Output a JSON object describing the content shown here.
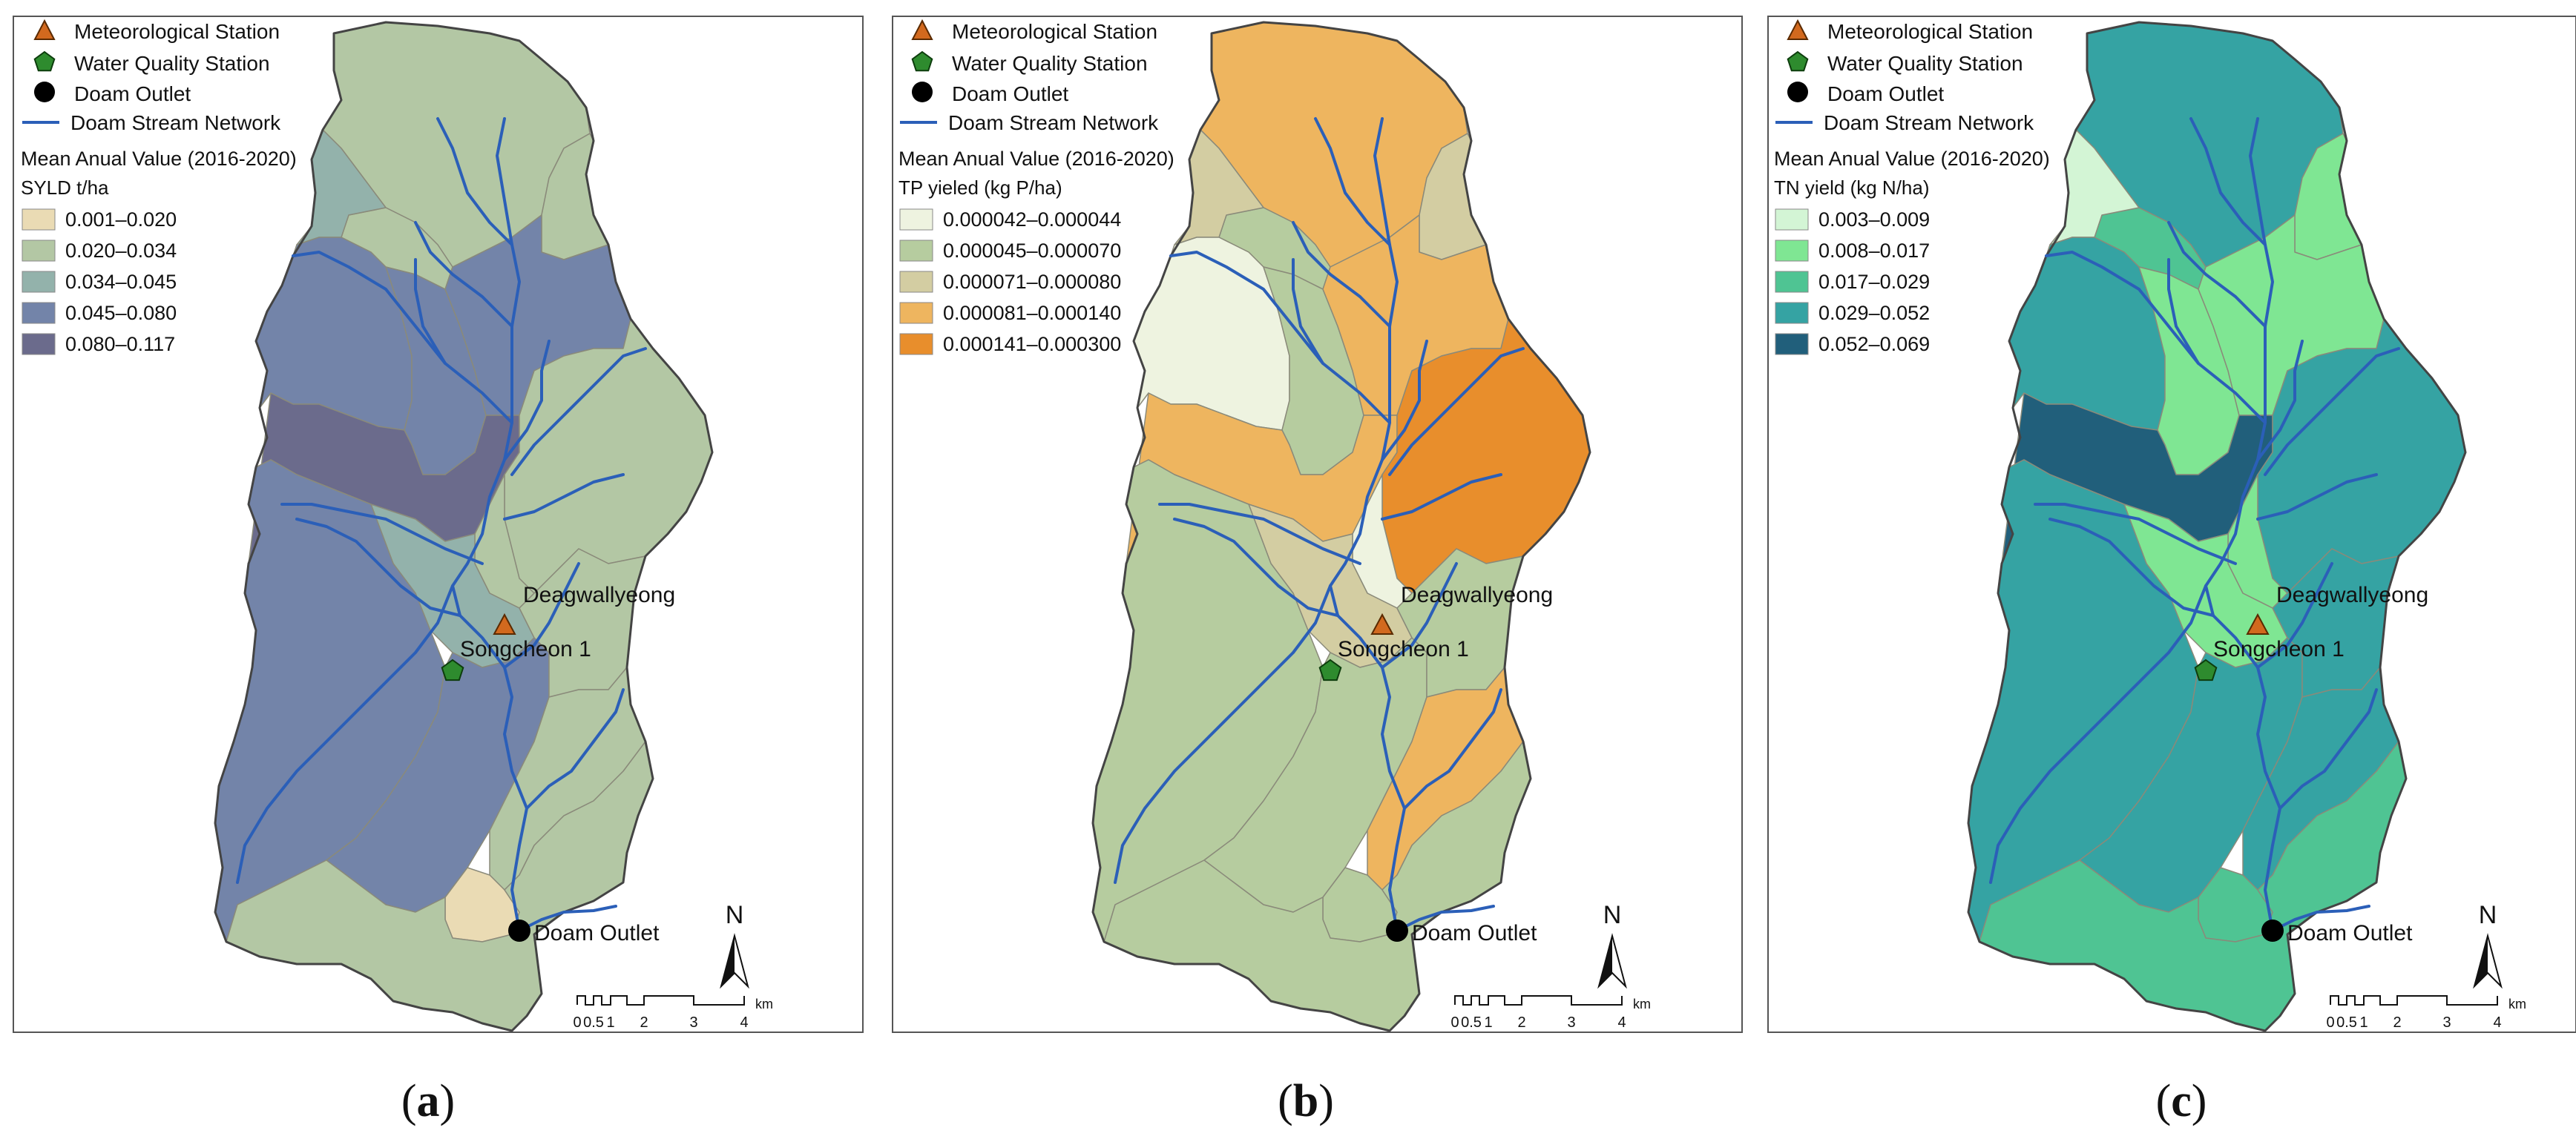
{
  "panels": [
    {
      "id": "a",
      "caption": "a",
      "legend": {
        "symbols": [
          "Meteorological Station",
          "Water Quality Station",
          "Doam Outlet",
          "Doam Stream Network"
        ],
        "title": "Mean Anual Value (2016-2020)",
        "subtitle": "SYLD t/ha",
        "classes": [
          {
            "label": "0.001–0.020",
            "color": "#eadbb4"
          },
          {
            "label": "0.020–0.034",
            "color": "#b3c7a4"
          },
          {
            "label": "0.034–0.045",
            "color": "#93b2ab"
          },
          {
            "label": "0.045–0.080",
            "color": "#7384a9"
          },
          {
            "label": "0.080–0.117",
            "color": "#6b6b8c"
          }
        ]
      },
      "zones": [
        1,
        1,
        2,
        1,
        3,
        3,
        3,
        4,
        1,
        1,
        2,
        3,
        3,
        1,
        1,
        0,
        1
      ],
      "labels": {
        "met": "Deagwallyeong",
        "wq": "Songcheon 1",
        "outlet": "Doam Outlet"
      }
    },
    {
      "id": "b",
      "caption": "b",
      "legend": {
        "symbols": [
          "Meteorological Station",
          "Water Quality Station",
          "Doam Outlet",
          "Doam Stream Network"
        ],
        "title": "Mean Anual Value (2016-2020)",
        "subtitle": "TP yieled (kg P/ha)",
        "classes": [
          {
            "label": "0.000042–0.000044",
            "color": "#eef3e0"
          },
          {
            "label": "0.000045–0.000070",
            "color": "#b6cc9f"
          },
          {
            "label": "0.000071–0.000080",
            "color": "#d3cda2"
          },
          {
            "label": "0.000081–0.000140",
            "color": "#eeb55f"
          },
          {
            "label": "0.000141–0.000300",
            "color": "#e88e2c"
          }
        ]
      },
      "zones": [
        3,
        1,
        2,
        2,
        0,
        1,
        3,
        3,
        4,
        0,
        2,
        1,
        1,
        1,
        3,
        1,
        1
      ],
      "labels": {
        "met": "Deagwallyeong",
        "wq": "Songcheon 1",
        "outlet": "Doam Outlet"
      }
    },
    {
      "id": "c",
      "caption": "c",
      "legend": {
        "symbols": [
          "Meteorological Station",
          "Water Quality Station",
          "Doam Outlet",
          "Doam Stream Network"
        ],
        "title": "Mean Anual Value (2016-2020)",
        "subtitle": "TN yield (kg N/ha)",
        "classes": [
          {
            "label": "0.003–0.009",
            "color": "#d3f5d5"
          },
          {
            "label": "0.008–0.017",
            "color": "#7fe693"
          },
          {
            "label": "0.017–0.029",
            "color": "#4fc493"
          },
          {
            "label": "0.029–0.052",
            "color": "#35a3a3"
          },
          {
            "label": "0.052–0.069",
            "color": "#215f7b"
          }
        ]
      },
      "zones": [
        3,
        2,
        0,
        1,
        3,
        1,
        1,
        4,
        3,
        1,
        1,
        3,
        3,
        3,
        3,
        2,
        2
      ],
      "labels": {
        "met": "Deagwallyeong",
        "wq": "Songcheon 1",
        "outlet": "Doam Outlet"
      }
    }
  ],
  "scalebar": {
    "ticks": [
      "0",
      "0.5",
      "1",
      "2",
      "3",
      "4"
    ],
    "unit": "km"
  },
  "north": "N",
  "colors": {
    "stream": "#2b5fb8",
    "boundary": "#444444",
    "met": "#d2691e",
    "wq": "#2e8b2e"
  }
}
